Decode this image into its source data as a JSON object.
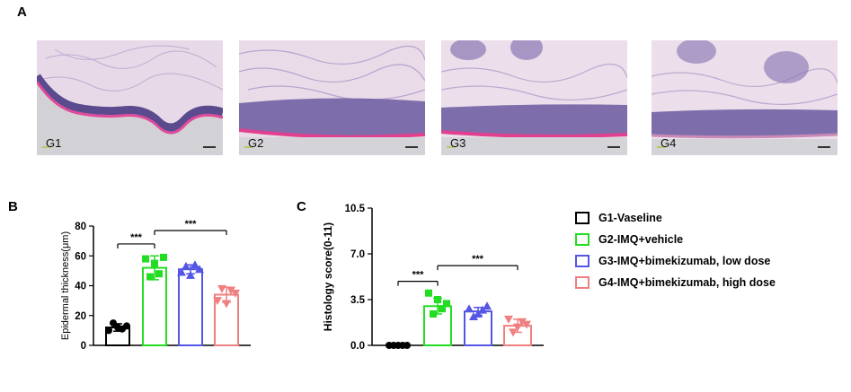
{
  "panels": {
    "a_letter": "A",
    "b_letter": "B",
    "c_letter": "C"
  },
  "histology_images": [
    {
      "label": "G1"
    },
    {
      "label": "G2"
    },
    {
      "label": "G3"
    },
    {
      "label": "G4"
    }
  ],
  "legend": [
    {
      "label": "G1-Vaseline",
      "color": "#000000"
    },
    {
      "label": "G2-IMQ+vehicle",
      "color": "#22dd22"
    },
    {
      "label": "G3-IMQ+bimekizumab, low dose",
      "color": "#5555e6"
    },
    {
      "label": "G4-IMQ+bimekizumab, high dose",
      "color": "#f08080"
    }
  ],
  "chart_data": [
    {
      "type": "bar",
      "ylabel": "Epidermal thickness(μm)",
      "xlabel": "",
      "ylim": [
        0,
        80
      ],
      "yticks": [
        "0",
        "20",
        "40",
        "60",
        "80"
      ],
      "series": [
        {
          "name": "G1-Vaseline",
          "color": "#000000",
          "mean": 12,
          "sd": 2.5,
          "marker": "circle",
          "points": [
            10,
            15,
            12,
            11,
            13
          ]
        },
        {
          "name": "G2-IMQ+vehicle",
          "color": "#22dd22",
          "mean": 52,
          "sd": 8,
          "marker": "square",
          "points": [
            58,
            46,
            55,
            48,
            59
          ]
        },
        {
          "name": "G3-IMQ+bimekizumab, low dose",
          "color": "#5555e6",
          "mean": 51,
          "sd": 3,
          "marker": "triangle-up",
          "points": [
            49,
            53,
            47,
            54,
            51
          ]
        },
        {
          "name": "G4-IMQ+bimekizumab, high dose",
          "color": "#f08080",
          "mean": 34,
          "sd": 5,
          "marker": "triangle-down",
          "points": [
            30,
            38,
            28,
            37,
            35
          ]
        }
      ],
      "significance": [
        {
          "from": 0,
          "to": 1,
          "label": "***",
          "y": 68
        },
        {
          "from": 1,
          "to": 3,
          "label": "***",
          "y": 77
        }
      ]
    },
    {
      "type": "bar",
      "ylabel": "Histology score(0-11)",
      "xlabel": "",
      "ylim": [
        0,
        10.5
      ],
      "yticks": [
        "0.0",
        "3.5",
        "7.0",
        "10.5"
      ],
      "series": [
        {
          "name": "G1-Vaseline",
          "color": "#000000",
          "mean": 0,
          "sd": 0,
          "marker": "circle",
          "points": [
            0,
            0,
            0,
            0,
            0
          ]
        },
        {
          "name": "G2-IMQ+vehicle",
          "color": "#22dd22",
          "mean": 3.0,
          "sd": 0.6,
          "marker": "square",
          "points": [
            4.0,
            2.4,
            3.5,
            2.8,
            3.2
          ]
        },
        {
          "name": "G3-IMQ+bimekizumab, low dose",
          "color": "#5555e6",
          "mean": 2.6,
          "sd": 0.3,
          "marker": "triangle-up",
          "points": [
            2.8,
            2.2,
            2.4,
            2.7,
            3.0
          ]
        },
        {
          "name": "G4-IMQ+bimekizumab, high dose",
          "color": "#f08080",
          "mean": 1.5,
          "sd": 0.5,
          "marker": "triangle-down",
          "points": [
            2.0,
            1.0,
            1.4,
            1.8,
            1.6
          ]
        }
      ],
      "significance": [
        {
          "from": 0,
          "to": 1,
          "label": "***",
          "y": 4.9
        },
        {
          "from": 1,
          "to": 3,
          "label": "***",
          "y": 6.1
        }
      ]
    }
  ]
}
